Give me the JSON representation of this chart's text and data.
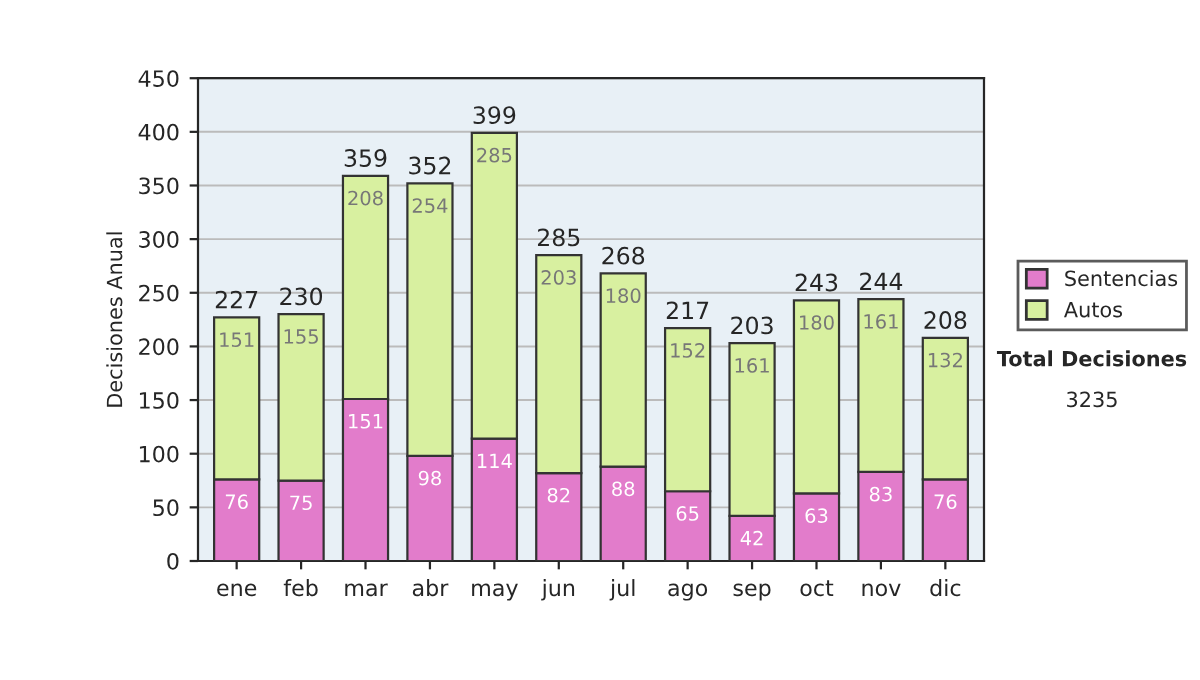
{
  "chart_data": {
    "type": "bar",
    "stacked": true,
    "categories": [
      "ene",
      "feb",
      "mar",
      "abr",
      "may",
      "jun",
      "jul",
      "ago",
      "sep",
      "oct",
      "nov",
      "dic"
    ],
    "series": [
      {
        "name": "Sentencias",
        "color": "#e27ccb",
        "values": [
          76,
          75,
          151,
          98,
          114,
          82,
          88,
          65,
          42,
          63,
          83,
          76
        ]
      },
      {
        "name": "Autos",
        "color": "#d8f0a0",
        "values": [
          151,
          155,
          208,
          254,
          285,
          203,
          180,
          152,
          161,
          180,
          161,
          132
        ]
      }
    ],
    "ylabel": "Decisiones Anual",
    "ylim": [
      0,
      450
    ],
    "yticks": [
      0,
      50,
      100,
      150,
      200,
      250,
      300,
      350,
      400,
      450
    ],
    "grid": "y",
    "legend": "right",
    "data_labels": true,
    "totals": [
      "227",
      "230",
      "359",
      "352",
      "399",
      "285",
      "268",
      "217",
      "203",
      "243",
      "244",
      "208"
    ],
    "annotations": [
      "Total Decisiones",
      "3235"
    ]
  }
}
